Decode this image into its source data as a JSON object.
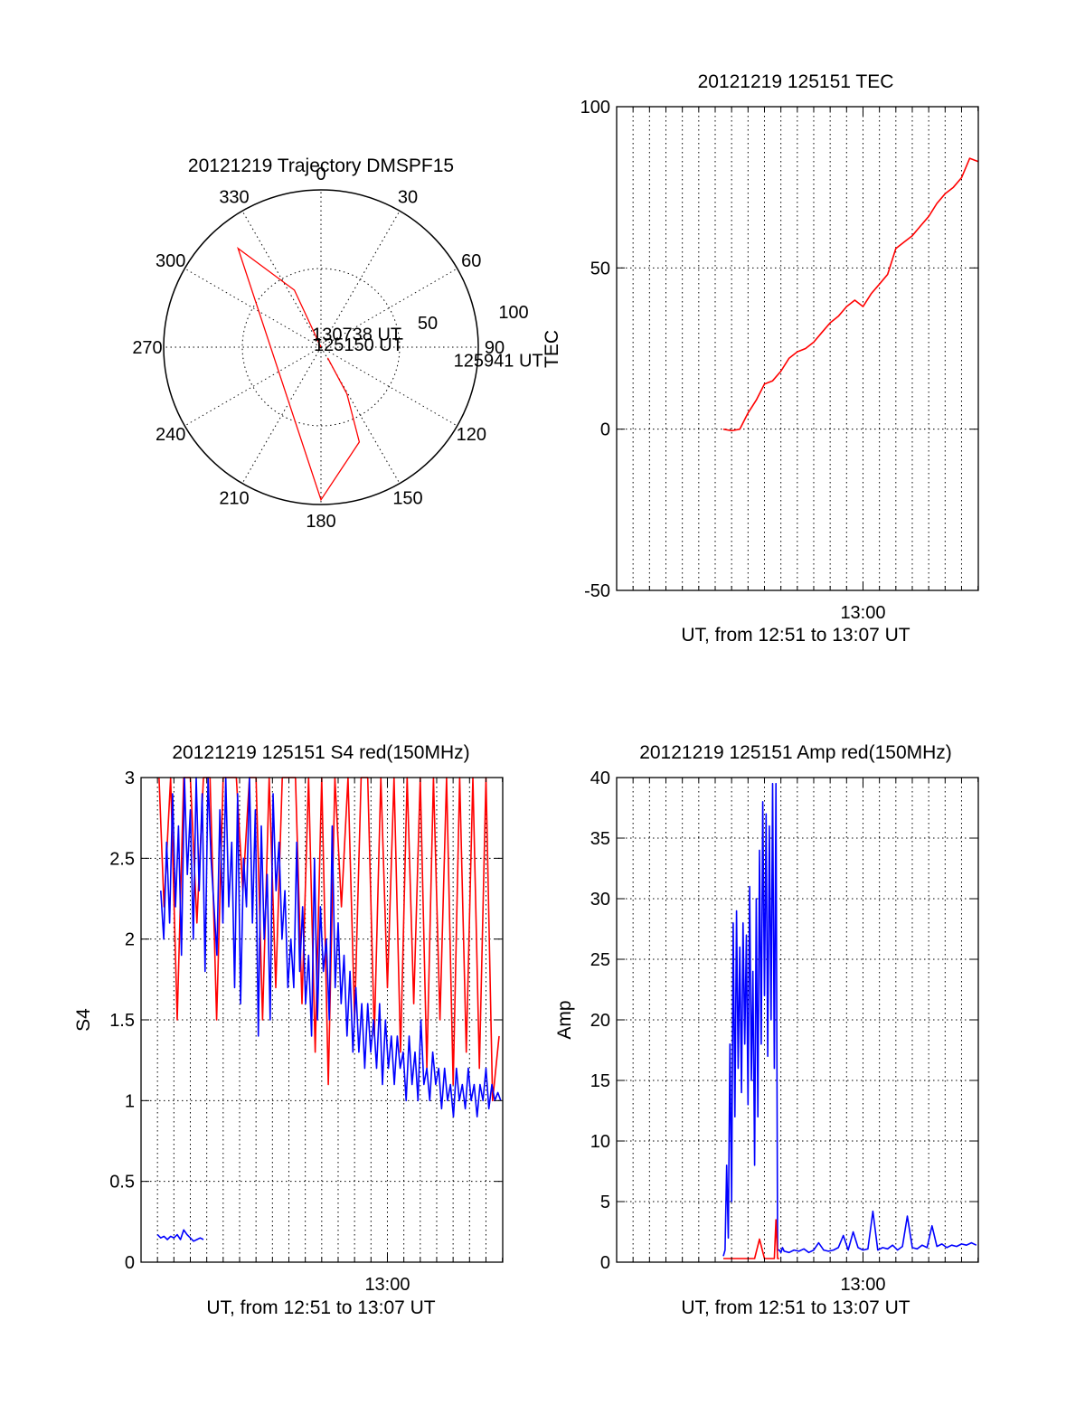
{
  "colors": {
    "red": "#ff0000",
    "blue": "#0000ff",
    "axis": "#000000"
  },
  "chart_data": [
    {
      "type": "polar",
      "title": "20121219 Trajectory DMSPF15",
      "angle_labels": [
        "0",
        "30",
        "60",
        "90",
        "120",
        "150",
        "180",
        "210",
        "240",
        "270",
        "300",
        "330"
      ],
      "radial_labels": [
        "50",
        "100"
      ],
      "radial_ticks": [
        50,
        100
      ],
      "radial_max": 100,
      "trajectory": {
        "color": "#ff0000",
        "points": [
          {
            "az": 338,
            "el": 100
          },
          {
            "az": 335,
            "el": 60
          },
          {
            "az": 320,
            "el": 18
          },
          {
            "az": 180,
            "el": 3
          },
          {
            "az": 158,
            "el": 35
          },
          {
            "az": 151,
            "el": 66
          },
          {
            "az": 148,
            "el": 92
          }
        ]
      },
      "annotations": [
        {
          "text": "130738 UT",
          "az": 344,
          "el": 92
        },
        {
          "text": "125941 UT",
          "az": 95,
          "el": 5
        },
        {
          "text": "125150 UT",
          "az": 145,
          "el": 102
        }
      ]
    },
    {
      "type": "line",
      "title": "20121219 125151 TEC",
      "ylabel": "TEC",
      "xlabel": "UT, from 12:51 to 13:07 UT",
      "xlim": [
        12.75,
        13.117
      ],
      "ylim": [
        -50,
        100
      ],
      "yticks": [
        -50,
        0,
        50,
        100
      ],
      "ytick_labels": [
        "-50",
        "0",
        "50",
        "100"
      ],
      "xticks": [
        13.0
      ],
      "xtick_labels": [
        "13:00"
      ],
      "grid_x_step_min": 1,
      "series": [
        {
          "color": "#ff0000",
          "x": [
            12.8583,
            12.8667,
            12.875,
            12.8833,
            12.8917,
            12.9,
            12.9083,
            12.9167,
            12.925,
            12.9333,
            12.9417,
            12.95,
            12.9583,
            12.9667,
            12.975,
            12.9833,
            12.9917,
            13.0,
            13.0083,
            13.0167,
            13.025,
            13.0333,
            13.0417,
            13.05,
            13.0583,
            13.0667,
            13.075,
            13.0833,
            13.0917,
            13.1,
            13.1083,
            13.1167
          ],
          "y": [
            0,
            -0.5,
            0,
            5,
            9,
            14,
            15,
            18,
            22,
            24,
            25,
            27,
            30,
            33,
            35,
            38,
            40,
            38,
            42,
            45,
            48,
            56,
            58,
            60,
            63,
            66,
            70,
            73,
            75,
            78,
            84,
            83
          ]
        }
      ]
    },
    {
      "type": "line",
      "title": "20121219 125151 S4 red(150MHz)",
      "ylabel": "S4",
      "xlabel": "UT, from 12:51 to 13:07 UT",
      "xlim": [
        12.75,
        13.117
      ],
      "ylim": [
        0,
        3
      ],
      "yticks": [
        0,
        0.5,
        1,
        1.5,
        2,
        2.5,
        3
      ],
      "ytick_labels": [
        "0",
        "0.5",
        "1",
        "1.5",
        "2",
        "2.5",
        "3"
      ],
      "xticks": [
        13.0
      ],
      "xtick_labels": [
        "13:00"
      ],
      "series": [
        {
          "color": "#ff0000",
          "x": [
            12.7683,
            12.7733,
            12.78,
            12.7867,
            12.7933,
            12.8,
            12.8067,
            12.8133,
            12.82,
            12.8267,
            12.8333,
            12.84,
            12.8467,
            12.8533,
            12.86,
            12.8667,
            12.8733,
            12.88,
            12.8867,
            12.8933,
            12.9,
            12.9067,
            12.9133,
            12.92,
            12.9267,
            12.9333,
            12.94,
            12.9467,
            12.9533,
            12.96,
            12.9667,
            12.9733,
            12.98,
            12.9867,
            12.9933,
            13.0,
            13.0067,
            13.0133,
            13.02,
            13.0267,
            13.0333,
            13.04,
            13.0467,
            13.0533,
            13.06,
            13.0667,
            13.0733,
            13.08,
            13.0867,
            13.0933,
            13.1,
            13.1067,
            13.1133
          ],
          "y": [
            3,
            2.2,
            3,
            1.5,
            3,
            3,
            2.1,
            3,
            3,
            1.5,
            3,
            3,
            3,
            2.3,
            3,
            3,
            1.5,
            3,
            1.7,
            3,
            3,
            3,
            1.6,
            3,
            1.3,
            3,
            1.1,
            3,
            2.2,
            3,
            1.5,
            3,
            3,
            1.4,
            3,
            1.7,
            3,
            1.3,
            3,
            1.6,
            3,
            1.2,
            3,
            1.5,
            3,
            1.1,
            3,
            1.3,
            3,
            1.2,
            3,
            1.0,
            1.4
          ]
        },
        {
          "color": "#0000ff",
          "x": [
            12.77,
            12.773,
            12.776,
            12.779,
            12.782,
            12.785,
            12.788,
            12.791,
            12.794,
            12.797,
            12.8,
            12.803,
            12.806,
            12.809,
            12.812,
            12.815,
            12.818,
            12.821,
            12.824,
            12.827,
            12.83,
            12.833,
            12.836,
            12.839,
            12.842,
            12.845,
            12.848,
            12.851,
            12.854,
            12.857,
            12.86,
            12.863,
            12.866,
            12.869,
            12.872,
            12.875,
            12.878,
            12.881,
            12.884,
            12.887,
            12.89,
            12.893,
            12.896,
            12.899,
            12.902,
            12.905,
            12.908,
            12.911,
            12.914,
            12.917,
            12.92,
            12.923,
            12.926,
            12.929,
            12.932,
            12.935,
            12.938,
            12.941,
            12.944,
            12.947,
            12.95,
            12.953,
            12.956,
            12.959,
            12.962,
            12.965,
            12.968,
            12.971,
            12.974,
            12.977,
            12.98,
            12.983,
            12.986,
            12.989,
            12.992,
            12.995,
            12.998,
            13.001,
            13.004,
            13.007,
            13.01,
            13.013,
            13.016,
            13.019,
            13.022,
            13.025,
            13.028,
            13.031,
            13.034,
            13.037,
            13.04,
            13.043,
            13.046,
            13.049,
            13.052,
            13.055,
            13.058,
            13.061,
            13.064,
            13.067,
            13.07,
            13.073,
            13.076,
            13.079,
            13.082,
            13.085,
            13.088,
            13.091,
            13.094,
            13.097,
            13.1,
            13.103,
            13.106,
            13.109,
            13.112,
            13.115
          ],
          "y": [
            2.3,
            2.0,
            2.6,
            2.1,
            2.9,
            2.2,
            2.7,
            1.9,
            3.0,
            2.4,
            2.8,
            2.0,
            3.0,
            2.3,
            2.9,
            1.8,
            3.0,
            2.5,
            2.2,
            1.9,
            2.8,
            2.1,
            3.0,
            2.2,
            2.6,
            1.7,
            2.9,
            1.6,
            2.5,
            2.2,
            3.0,
            2.1,
            2.8,
            1.4,
            2.7,
            2.0,
            2.4,
            1.5,
            2.9,
            2.3,
            2.6,
            2.0,
            2.3,
            1.7,
            2.0,
            1.7,
            2.6,
            1.8,
            2.2,
            1.6,
            1.9,
            1.4,
            2.5,
            1.5,
            2.2,
            1.8,
            2.0,
            1.5,
            2.7,
            1.7,
            2.1,
            1.6,
            1.9,
            1.4,
            1.8,
            1.3,
            1.7,
            1.3,
            1.6,
            1.2,
            1.6,
            1.3,
            1.5,
            1.2,
            1.6,
            1.1,
            1.5,
            1.2,
            1.4,
            1.1,
            1.4,
            1.2,
            1.3,
            1.0,
            1.4,
            1.1,
            1.3,
            1.0,
            1.5,
            1.1,
            1.2,
            1.0,
            1.3,
            1.1,
            1.2,
            0.95,
            1.2,
            1.0,
            1.1,
            0.9,
            1.2,
            1.0,
            1.1,
            0.95,
            1.2,
            1.0,
            1.1,
            0.9,
            1.1,
            1.0,
            1.2,
            0.95,
            1.1,
            1.0,
            1.05,
            1.0
          ]
        },
        {
          "color": "#0000ff",
          "x": [
            12.7667,
            12.77,
            12.7733,
            12.7767,
            12.78,
            12.7833,
            12.7867,
            12.79,
            12.7933,
            12.7967,
            12.8,
            12.8033,
            12.8067,
            12.81,
            12.8133
          ],
          "y": [
            0.17,
            0.15,
            0.16,
            0.14,
            0.16,
            0.15,
            0.17,
            0.14,
            0.2,
            0.17,
            0.15,
            0.13,
            0.14,
            0.15,
            0.14
          ]
        }
      ]
    },
    {
      "type": "line",
      "title": "20121219 125151 Amp red(150MHz)",
      "ylabel": "Amp",
      "xlabel": "UT, from 12:51 to 13:07 UT",
      "xlim": [
        12.75,
        13.117
      ],
      "ylim": [
        0,
        40
      ],
      "yticks": [
        0,
        5,
        10,
        15,
        20,
        25,
        30,
        35,
        40
      ],
      "ytick_labels": [
        "0",
        "5",
        "10",
        "15",
        "20",
        "25",
        "30",
        "35",
        "40"
      ],
      "xticks": [
        13.0
      ],
      "xtick_labels": [
        "13:00"
      ],
      "series": [
        {
          "color": "#0000ff",
          "x": [
            12.8583,
            12.86,
            12.8617,
            12.8633,
            12.865,
            12.8667,
            12.8683,
            12.87,
            12.8717,
            12.8733,
            12.875,
            12.8767,
            12.8783,
            12.88,
            12.8817,
            12.8833,
            12.885,
            12.8867,
            12.8883,
            12.89,
            12.8917,
            12.8933,
            12.895,
            12.8967,
            12.8983,
            12.9,
            12.9017,
            12.9033,
            12.905,
            12.9067,
            12.9083,
            12.91,
            12.9117,
            12.9133,
            12.915,
            12.9167,
            12.9183,
            12.92,
            12.925,
            12.93,
            12.935,
            12.94,
            12.945,
            12.95,
            12.955,
            12.96,
            12.965,
            12.97,
            12.975,
            12.98,
            12.985,
            12.99,
            12.995,
            13.0,
            13.005,
            13.01,
            13.015,
            13.02,
            13.025,
            13.03,
            13.035,
            13.04,
            13.045,
            13.05,
            13.055,
            13.06,
            13.065,
            13.07,
            13.075,
            13.08,
            13.085,
            13.09,
            13.095,
            13.1,
            13.105,
            13.11,
            13.115
          ],
          "y": [
            0.5,
            1,
            8,
            2,
            18,
            5,
            28,
            12,
            29,
            16,
            26,
            14,
            28,
            18,
            27,
            13,
            31,
            15,
            24,
            8,
            30,
            12,
            34,
            18,
            38,
            22,
            37,
            17,
            36,
            20,
            39.5,
            16,
            39.5,
            1,
            1,
            0.8,
            1.2,
            0.9,
            0.8,
            1.0,
            0.9,
            1.1,
            0.8,
            1.0,
            1.6,
            1.0,
            0.9,
            1.0,
            1.2,
            2.2,
            1.0,
            2.5,
            1.2,
            1.0,
            1.1,
            4.2,
            1.0,
            1.2,
            1.1,
            1.4,
            1.0,
            1.3,
            3.8,
            1.2,
            1.1,
            1.4,
            1.2,
            3.0,
            1.3,
            1.5,
            1.2,
            1.4,
            1.3,
            1.5,
            1.4,
            1.6,
            1.4
          ]
        },
        {
          "color": "#ff0000",
          "x": [
            12.8583,
            12.87,
            12.88,
            12.89,
            12.895,
            12.9,
            12.905,
            12.91,
            12.9117,
            12.9133,
            12.915
          ],
          "y": [
            0.3,
            0.3,
            0.3,
            0.3,
            1.9,
            0.3,
            0.3,
            0.3,
            3.5,
            0.3,
            0.3
          ]
        }
      ]
    }
  ]
}
